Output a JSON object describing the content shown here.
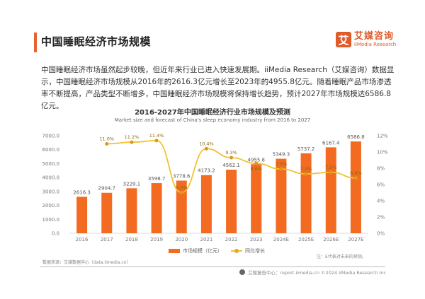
{
  "header": {
    "title": "中国睡眠经济市场规模",
    "logo_char": "艾",
    "logo_cn": "艾媒咨询",
    "logo_en": "iiMedia Research"
  },
  "paragraph": "中国睡眠经济市场虽然起步较晚，但近年来行业已进入快速发展期。iiMedia Research（艾媒咨询）数据显示，中国睡眠经济市场规模从2016年的2616.3亿元增长至2023年的4955.8亿元。随着睡眠产品市场渗透率不断提高，产品类型不断增多，中国睡眠经济市场规模将保持增长趋势，预计2027年市场规模达6586.8亿元。",
  "chart_data": {
    "type": "bar",
    "title": "2016-2027年中国睡眠经济行业市场规模及预测",
    "subtitle": "Market size and forecast of China's sleep economy industry from 2016 to 2027",
    "categories": [
      "2016",
      "2017",
      "2018",
      "2019",
      "2020",
      "2021",
      "2022",
      "2023",
      "2024E",
      "2025E",
      "2026E",
      "2027E"
    ],
    "series": [
      {
        "name": "市场规模（亿元）",
        "type": "bar",
        "axis": "left",
        "color": "#f26b21",
        "values": [
          2616.3,
          2904.7,
          3229.1,
          3598.7,
          3778.6,
          4173.2,
          4562.1,
          4955.8,
          5349.3,
          5737.2,
          6167.4,
          6586.8
        ],
        "labels": [
          "2616.3",
          "2904.7",
          "3229.1",
          "3598.7",
          "3778.6",
          "4173.2",
          "4562.1",
          "4955.8",
          "5349.3",
          "5737.2",
          "6167.4",
          "6586.8"
        ]
      },
      {
        "name": "同比增长",
        "type": "line",
        "axis": "right",
        "color": "#f2c230",
        "values": [
          null,
          11.0,
          11.2,
          11.4,
          5.0,
          10.4,
          9.3,
          8.6,
          7.9,
          7.3,
          7.5,
          6.8
        ],
        "labels": [
          "",
          "11.0%",
          "11.2%",
          "11.4%",
          "5.0%",
          "10.4%",
          "9.3%",
          "8.6%",
          "7.9%",
          "7.3%",
          "7.5%",
          "6.8%"
        ]
      }
    ],
    "y_left": {
      "min": 0,
      "max": 7000,
      "ticks": [
        "0.0",
        "1000.0",
        "2000.0",
        "3000.0",
        "4000.0",
        "5000.0",
        "6000.0",
        "7000.0"
      ]
    },
    "y_right": {
      "min": 0,
      "max": 12,
      "ticks": [
        "0%",
        "2%",
        "4%",
        "6%",
        "8%",
        "10%",
        "12%"
      ]
    },
    "legend_position": "bottom"
  },
  "footer": {
    "source": "数据来源：艾媒数据中心（data.iimedia.cn）",
    "note": "注：E代表对未来的预测。",
    "copyright": "艾媒报告中心：report.iimedia.cn    ©2024  iiMedia Research Inc"
  }
}
